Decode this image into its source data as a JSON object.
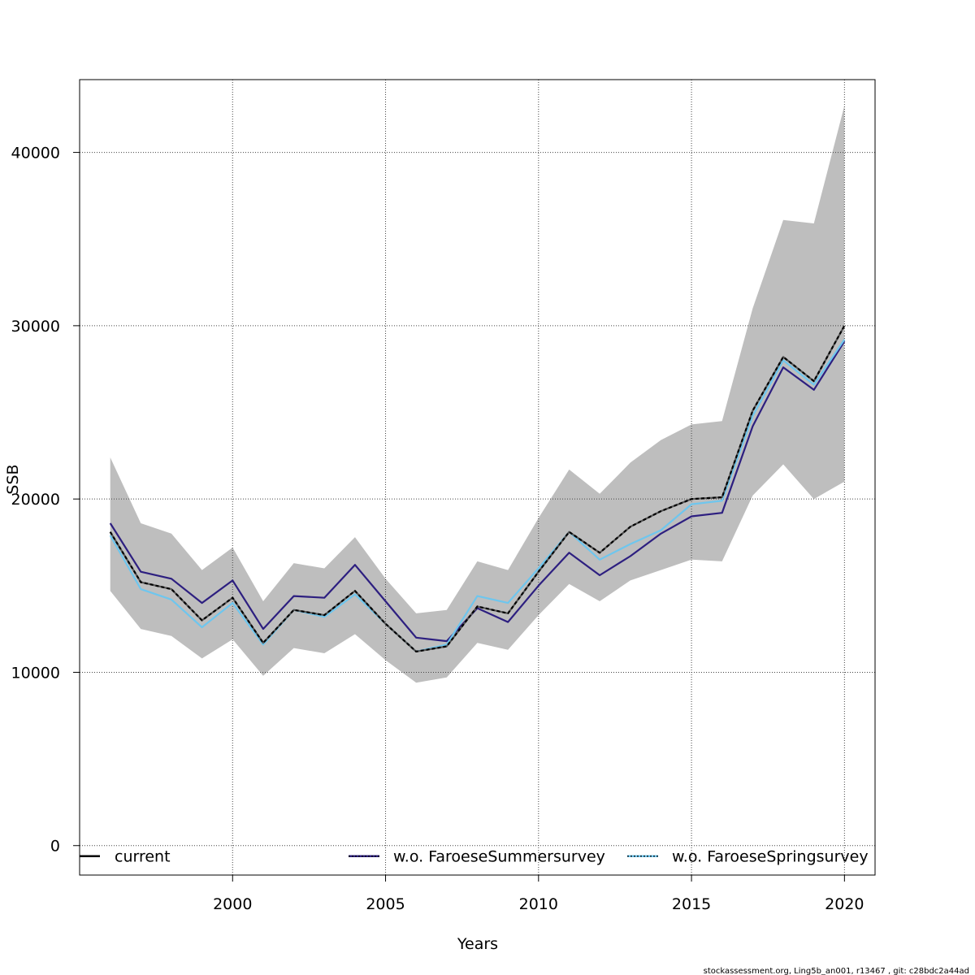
{
  "chart_data": {
    "type": "line",
    "xlabel": "Years",
    "ylabel": "SSB",
    "xlim": [
      1995,
      2021
    ],
    "ylim": [
      -1700,
      44200
    ],
    "x_ticks": [
      2000,
      2005,
      2010,
      2015,
      2020
    ],
    "x_tick_labels": [
      "2000",
      "2005",
      "2010",
      "2015",
      "2020"
    ],
    "y_ticks": [
      0,
      10000,
      20000,
      30000,
      40000
    ],
    "y_tick_labels": [
      "0",
      "10000",
      "20000",
      "30000",
      "40000"
    ],
    "grid": true,
    "legend_position": "bottom",
    "x": [
      1996,
      1997,
      1998,
      1999,
      2000,
      2001,
      2002,
      2003,
      2004,
      2005,
      2006,
      2007,
      2008,
      2009,
      2010,
      2011,
      2012,
      2013,
      2014,
      2015,
      2016,
      2017,
      2018,
      2019,
      2020
    ],
    "confidence_band": {
      "color": "#bebebe",
      "lower": [
        14700,
        12500,
        12100,
        10800,
        11900,
        9800,
        11400,
        11100,
        12200,
        10700,
        9400,
        9700,
        11700,
        11300,
        13300,
        15100,
        14100,
        15300,
        15900,
        16500,
        16400,
        20200,
        22000,
        20000,
        21000
      ],
      "upper": [
        22400,
        18600,
        18000,
        15900,
        17200,
        14100,
        16300,
        16000,
        17800,
        15400,
        13400,
        13600,
        16400,
        15900,
        18900,
        21700,
        20300,
        22100,
        23400,
        24300,
        24500,
        31000,
        36100,
        35900,
        42700
      ]
    },
    "series": [
      {
        "name": "current",
        "color": "#000000",
        "values": [
          18100,
          15200,
          14800,
          13000,
          14300,
          11700,
          13600,
          13300,
          14700,
          12800,
          11200,
          11500,
          13800,
          13400,
          15800,
          18100,
          16900,
          18400,
          19300,
          20000,
          20100,
          25100,
          28200,
          26800,
          30000
        ]
      },
      {
        "name": "w.o. FaroeseSummersurvey",
        "color": "#2d1f80",
        "values": [
          18600,
          15800,
          15400,
          14000,
          15300,
          12500,
          14400,
          14300,
          16200,
          14100,
          12000,
          11800,
          13700,
          12900,
          15000,
          16900,
          15600,
          16700,
          18000,
          19000,
          19200,
          24200,
          27600,
          26300,
          29100
        ]
      },
      {
        "name": "w.o. FaroeseSpringsurvey",
        "color": "#6ec6ee",
        "values": [
          17900,
          14800,
          14200,
          12600,
          14000,
          11600,
          13600,
          13200,
          14500,
          12800,
          11200,
          11600,
          14400,
          14000,
          16000,
          18100,
          16500,
          17400,
          18200,
          19700,
          19900,
          24800,
          28000,
          26600,
          29200
        ]
      }
    ]
  },
  "footer": {
    "note": "stockassessment.org, Ling5b_an001, r13467 , git: c28bdc2a44ad"
  }
}
